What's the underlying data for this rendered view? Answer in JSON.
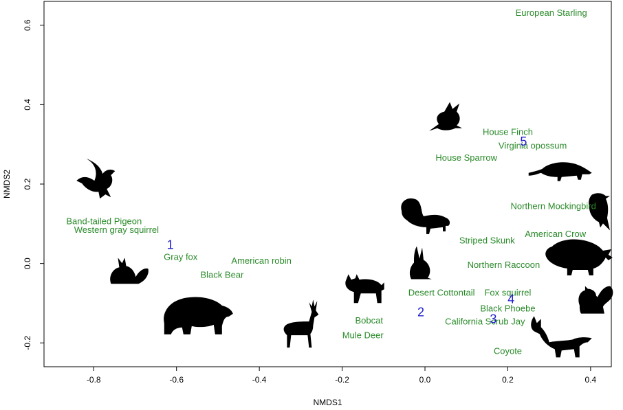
{
  "chart_data": {
    "type": "scatter",
    "xlabel": "NMDS1",
    "ylabel": "NMDS2",
    "xlim": [
      -0.92,
      0.45
    ],
    "ylim": [
      -0.26,
      0.66
    ],
    "x_ticks": [
      -0.8,
      -0.6,
      -0.4,
      -0.2,
      0.0,
      0.2,
      0.4
    ],
    "x_tick_labels": [
      "-0.8",
      "-0.6",
      "-0.4",
      "-0.2",
      "0.0",
      "0.2",
      "0.4"
    ],
    "y_ticks": [
      -0.2,
      0.0,
      0.2,
      0.4,
      0.6
    ],
    "y_tick_labels": [
      "-0.2",
      "0.0",
      "0.2",
      "0.4",
      "0.6"
    ],
    "grid": false,
    "species_color": "#2a8a2a",
    "site_color": "#1d1dcc",
    "species": [
      {
        "name": "European Starling",
        "x": 0.305,
        "y": 0.63
      },
      {
        "name": "House Finch",
        "x": 0.2,
        "y": 0.33
      },
      {
        "name": "Virginia opossum",
        "x": 0.26,
        "y": 0.295
      },
      {
        "name": "House Sparrow",
        "x": 0.1,
        "y": 0.265
      },
      {
        "name": "Northern Mockingbird",
        "x": 0.31,
        "y": 0.143
      },
      {
        "name": "Band-tailed Pigeon",
        "x": -0.775,
        "y": 0.105
      },
      {
        "name": "Western gray squirrel",
        "x": -0.745,
        "y": 0.083
      },
      {
        "name": "American Crow",
        "x": 0.315,
        "y": 0.073
      },
      {
        "name": "Striped Skunk",
        "x": 0.15,
        "y": 0.056
      },
      {
        "name": "Gray fox",
        "x": -0.59,
        "y": 0.015
      },
      {
        "name": "American robin",
        "x": -0.395,
        "y": 0.005
      },
      {
        "name": "Northern Raccoon",
        "x": 0.19,
        "y": -0.005
      },
      {
        "name": "Black Bear",
        "x": -0.49,
        "y": -0.03
      },
      {
        "name": "Desert Cottontail",
        "x": 0.04,
        "y": -0.075
      },
      {
        "name": "Fox squirrel",
        "x": 0.2,
        "y": -0.075
      },
      {
        "name": "Black Phoebe",
        "x": 0.2,
        "y": -0.115
      },
      {
        "name": "California Scrub Jay",
        "x": 0.145,
        "y": -0.148
      },
      {
        "name": "Bobcat",
        "x": -0.135,
        "y": -0.145
      },
      {
        "name": "Mule Deer",
        "x": -0.15,
        "y": -0.182
      },
      {
        "name": "Coyote",
        "x": 0.2,
        "y": -0.222
      }
    ],
    "sites": [
      {
        "name": "1",
        "x": -0.615,
        "y": 0.045
      },
      {
        "name": "2",
        "x": -0.01,
        "y": -0.125
      },
      {
        "name": "3",
        "x": 0.165,
        "y": -0.142
      },
      {
        "name": "4",
        "x": 0.208,
        "y": -0.092
      },
      {
        "name": "5",
        "x": 0.238,
        "y": 0.305
      }
    ],
    "silhouettes": [
      {
        "icon": "pigeon-icon",
        "x": -0.795,
        "y": 0.205
      },
      {
        "icon": "fox-icon",
        "x": -0.715,
        "y": -0.02
      },
      {
        "icon": "bear-icon",
        "x": -0.55,
        "y": -0.13
      },
      {
        "icon": "deer-icon",
        "x": -0.3,
        "y": -0.16
      },
      {
        "icon": "bobcat-icon",
        "x": -0.145,
        "y": -0.065
      },
      {
        "icon": "starling-icon",
        "x": 0.05,
        "y": 0.365
      },
      {
        "icon": "skunk-icon",
        "x": 0.0,
        "y": 0.105
      },
      {
        "icon": "rabbit-icon",
        "x": -0.01,
        "y": -0.005
      },
      {
        "icon": "opossum-icon",
        "x": 0.33,
        "y": 0.235
      },
      {
        "icon": "crow-icon",
        "x": 0.42,
        "y": 0.125
      },
      {
        "icon": "raccoon-icon",
        "x": 0.37,
        "y": 0.015
      },
      {
        "icon": "squirrel-icon",
        "x": 0.41,
        "y": -0.095
      },
      {
        "icon": "coyote-icon",
        "x": 0.33,
        "y": -0.195
      }
    ]
  }
}
